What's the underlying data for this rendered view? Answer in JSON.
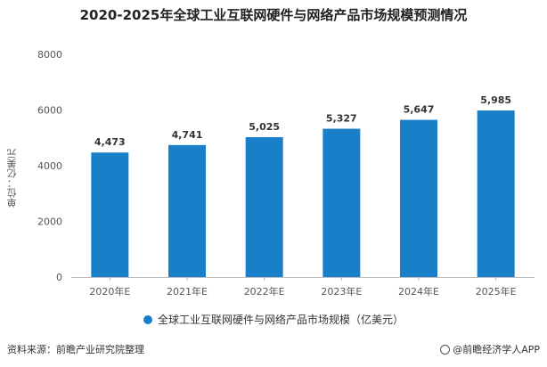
{
  "chart_data": {
    "type": "bar",
    "title": "2020-2025年全球工业互联网硬件与网络产品市场规模预测情况",
    "ylabel": "单位：亿美元",
    "xlabel": "",
    "categories": [
      "2020年E",
      "2021年E",
      "2022年E",
      "2023年E",
      "2024年E",
      "2025年E"
    ],
    "series": [
      {
        "name": "全球工业互联网硬件与网络产品市场规模（亿美元）",
        "values": [
          4473,
          4741,
          5025,
          5327,
          5647,
          5985
        ],
        "labels": [
          "4,473",
          "4,741",
          "5,025",
          "5,327",
          "5,647",
          "5,985"
        ]
      }
    ],
    "yticks": [
      "0",
      "2000",
      "4000",
      "6000",
      "8000"
    ],
    "ylim": [
      0,
      8000
    ],
    "grid": false,
    "legend": "bottom",
    "color": "#1a7fc9"
  },
  "footer": {
    "source": "资料来源：前瞻产业研究院整理",
    "brand": "@前瞻经济学人APP"
  }
}
